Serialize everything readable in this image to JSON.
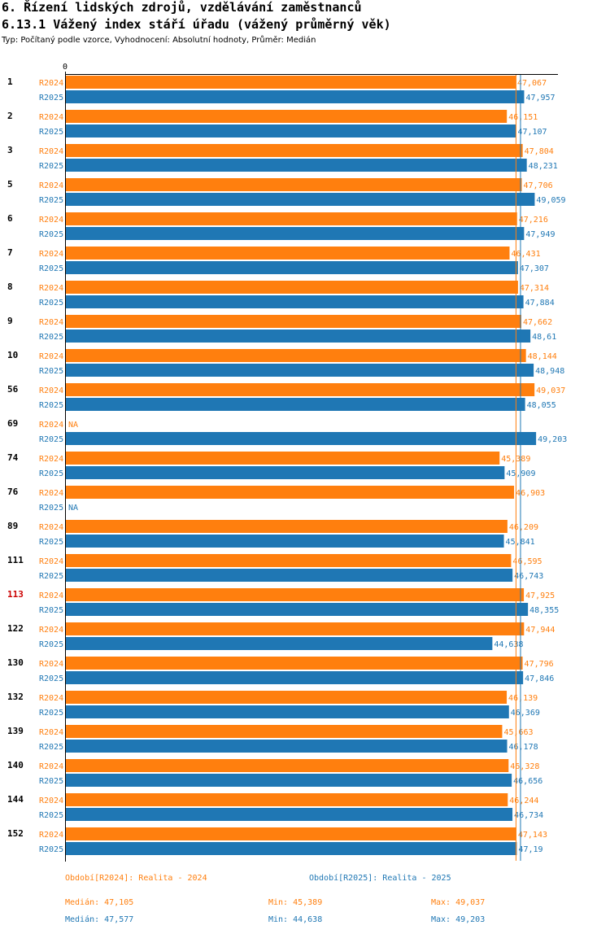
{
  "header": {
    "title": "6. Řízení lidských zdrojů, vzdělávání zaměstnanců",
    "subtitle": "6.13.1 Vážený index stáří úřadu (vážený průměrný věk)",
    "meta": "Typ: Počítaný podle vzorce, Vyhodnocení: Absolutní hodnoty, Průměr: Medián"
  },
  "colors": {
    "r2024": "#ff7f0e",
    "r2025": "#1f77b4",
    "highlight": "#cc0000"
  },
  "chart_data": {
    "type": "bar",
    "orientation": "horizontal",
    "axis_zero_label": "0",
    "na_label": "NA",
    "series": [
      {
        "name": "R2024",
        "label": "Období[R2024]: Realita - 2024"
      },
      {
        "name": "R2025",
        "label": "Období[R2025]: Realita - 2025"
      }
    ],
    "categories": [
      "1",
      "2",
      "3",
      "5",
      "6",
      "7",
      "8",
      "9",
      "10",
      "56",
      "69",
      "74",
      "76",
      "89",
      "111",
      "113",
      "122",
      "130",
      "132",
      "139",
      "140",
      "144",
      "152"
    ],
    "highlighted_category": "113",
    "values": {
      "R2024": [
        "47,067",
        "46,151",
        "47,804",
        "47,706",
        "47,216",
        "46,431",
        "47,314",
        "47,662",
        "48,144",
        "49,037",
        null,
        "45,389",
        "46,903",
        "46,209",
        "46,595",
        "47,925",
        "47,944",
        "47,796",
        "46,139",
        "45,663",
        "46,328",
        "46,244",
        "47,143"
      ],
      "R2025": [
        "47,957",
        "47,107",
        "48,231",
        "49,059",
        "47,949",
        "47,307",
        "47,884",
        "48,61",
        "48,948",
        "48,055",
        "49,203",
        "45,909",
        null,
        "45,841",
        "46,743",
        "48,355",
        "44,638",
        "47,846",
        "46,369",
        "46,178",
        "46,656",
        "46,734",
        "47,19"
      ]
    },
    "xlim": [
      0,
      55.9
    ],
    "median_lines": {
      "R2024": 47.105,
      "R2025": 47.577
    }
  },
  "footer": {
    "legend_2024": "Období[R2024]: Realita - 2024",
    "legend_2025": "Období[R2025]: Realita - 2025",
    "median_2024": "Medián: 47,105",
    "min_2024": "Min: 45,389",
    "max_2024": "Max: 49,037",
    "median_2025": "Medián: 47,577",
    "min_2025": "Min: 44,638",
    "max_2025": "Max: 49,203"
  }
}
